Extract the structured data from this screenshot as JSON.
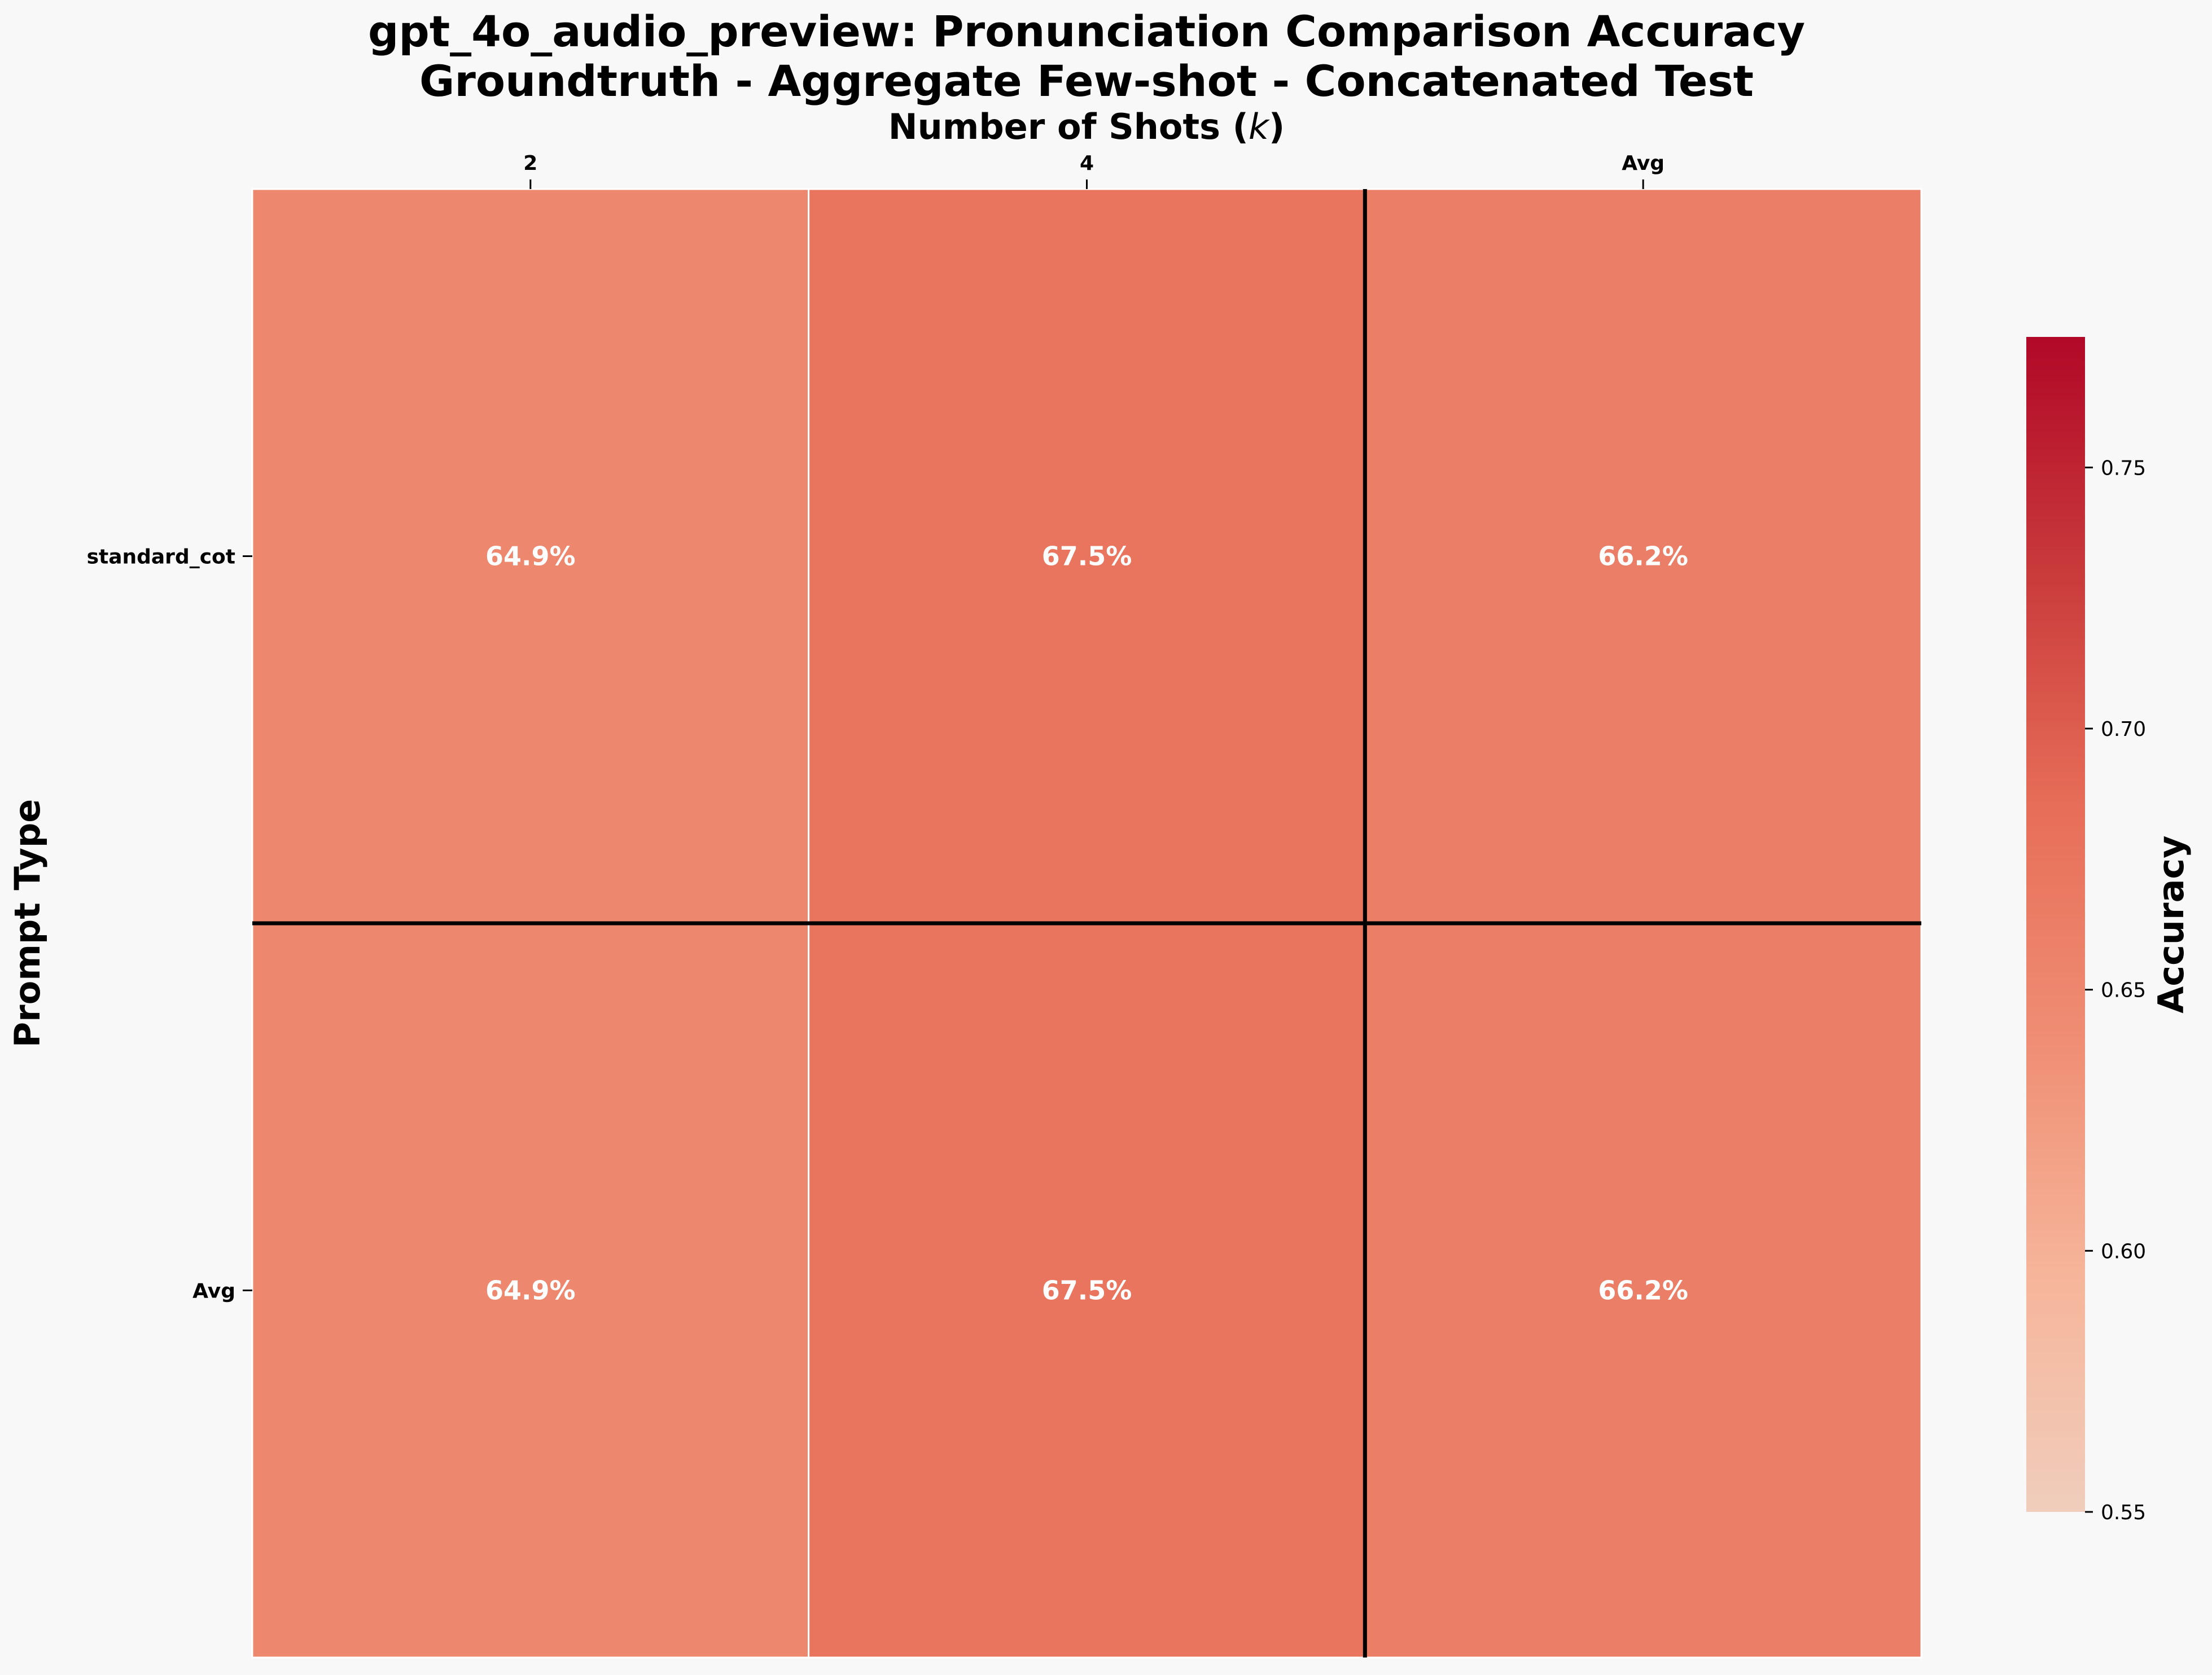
{
  "chart_data": {
    "type": "heatmap",
    "title": "gpt_4o_audio_preview: Pronunciation Comparison Accuracy",
    "subtitle": "Groundtruth - Aggregate Few-shot - Concatenated Test",
    "xlabel": "Number of Shots (k)",
    "xlabel_prefix": "Number of Shots (",
    "xlabel_var": "k",
    "xlabel_suffix": ")",
    "ylabel": "Prompt Type",
    "x_categories": [
      "2",
      "4",
      "Avg"
    ],
    "y_categories": [
      "standard_cot",
      "Avg"
    ],
    "values": [
      [
        0.649,
        0.675,
        0.662
      ],
      [
        0.649,
        0.675,
        0.662
      ]
    ],
    "cell_labels": [
      [
        "64.9%",
        "67.5%",
        "66.2%"
      ],
      [
        "64.9%",
        "67.5%",
        "66.2%"
      ]
    ],
    "colorbar": {
      "label": "Accuracy",
      "range": [
        0.55,
        0.775
      ],
      "ticks": [
        0.55,
        0.6,
        0.65,
        0.7,
        0.75
      ],
      "tick_labels": [
        "0.55",
        "0.60",
        "0.65",
        "0.70",
        "0.75"
      ],
      "colormap": "Reds",
      "colors": {
        "low": "#f0cdbc",
        "mid": "#eb7a62",
        "high": "#b10827"
      }
    },
    "x_position": "top",
    "separator_color": "#000000",
    "background": "#f8f8f8"
  }
}
